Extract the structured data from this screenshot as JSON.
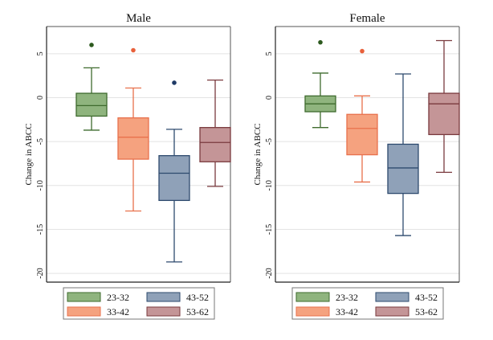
{
  "chart_data": [
    {
      "type": "box",
      "title": "Male",
      "ylabel": "Change in ABCC",
      "ylim": [
        -21,
        8.1
      ],
      "yticks": [
        5,
        0,
        -5,
        -10,
        -15,
        -20
      ],
      "grid": true,
      "legend_placement": "bottom",
      "series": [
        {
          "name": "23-32",
          "whisker_high": 3.4,
          "q3": 0.5,
          "median": -0.9,
          "q1": -2.1,
          "whisker_low": -3.7,
          "outliers": [
            6.0
          ]
        },
        {
          "name": "33-42",
          "whisker_high": 1.1,
          "q3": -2.3,
          "median": -4.5,
          "q1": -7.0,
          "whisker_low": -12.9,
          "outliers": [
            5.4
          ]
        },
        {
          "name": "43-52",
          "whisker_high": -3.6,
          "q3": -6.6,
          "median": -8.6,
          "q1": -11.7,
          "whisker_low": -18.7,
          "outliers": [
            1.7
          ]
        },
        {
          "name": "53-62",
          "whisker_high": 2.0,
          "q3": -3.4,
          "median": -5.1,
          "q1": -7.3,
          "whisker_low": -10.1,
          "outliers": []
        }
      ]
    },
    {
      "type": "box",
      "title": "Female",
      "ylabel": "Change in ABCC",
      "ylim": [
        -21,
        8.1
      ],
      "yticks": [
        5,
        0,
        -5,
        -10,
        -15,
        -20
      ],
      "grid": true,
      "legend_placement": "bottom",
      "series": [
        {
          "name": "23-32",
          "whisker_high": 2.8,
          "q3": 0.2,
          "median": -0.7,
          "q1": -1.6,
          "whisker_low": -3.4,
          "outliers": [
            6.3
          ]
        },
        {
          "name": "33-42",
          "whisker_high": 0.2,
          "q3": -1.9,
          "median": -3.5,
          "q1": -6.5,
          "whisker_low": -9.6,
          "outliers": [
            5.3
          ]
        },
        {
          "name": "43-52",
          "whisker_high": 2.7,
          "q3": -5.3,
          "median": -8.0,
          "q1": -10.9,
          "whisker_low": -15.7,
          "outliers": []
        },
        {
          "name": "53-62",
          "whisker_high": 6.5,
          "q3": 0.5,
          "median": -0.7,
          "q1": -4.2,
          "whisker_low": -8.5,
          "outliers": []
        }
      ]
    }
  ],
  "colors": {
    "23-32": {
      "fill": "#8fb47e",
      "stroke": "#3f6b2e",
      "dot": "#2d5a1f"
    },
    "33-42": {
      "fill": "#f5a27f",
      "stroke": "#e8714c",
      "dot": "#e8603a"
    },
    "43-52": {
      "fill": "#8fa1b8",
      "stroke": "#2e4a6e",
      "dot": "#1f3a66"
    },
    "53-62": {
      "fill": "#c49597",
      "stroke": "#7a3a3e",
      "dot": "#7a3a3e"
    }
  }
}
